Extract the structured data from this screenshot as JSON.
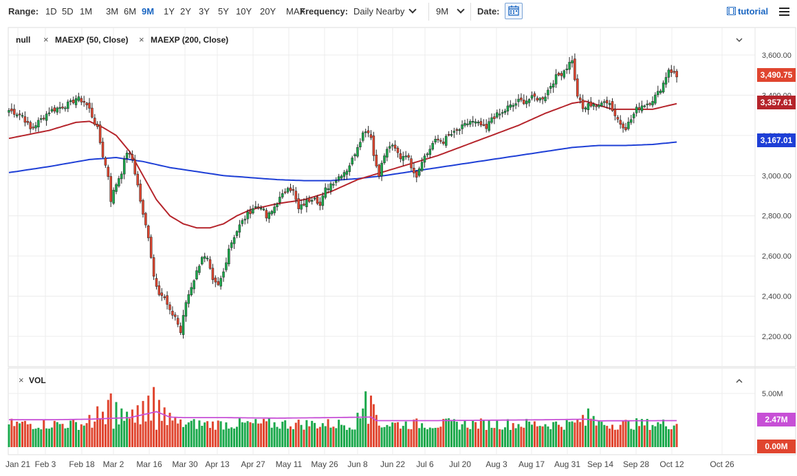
{
  "toolbar": {
    "range_label": "Range:",
    "ranges": [
      "1D",
      "5D",
      "1M",
      "3M",
      "6M",
      "9M",
      "1Y",
      "2Y",
      "3Y",
      "5Y",
      "10Y",
      "20Y",
      "MAX"
    ],
    "active_range": "9M",
    "frequency_label": "Frequency:",
    "frequency_value": "Daily Nearby",
    "period_value": "9M",
    "date_label": "Date:",
    "tutorial_label": "tutorial"
  },
  "legend": {
    "symbol": "null",
    "ma50": "MAEXP (50, Close)",
    "ma200": "MAEXP (200, Close)"
  },
  "volume_legend": "VOL",
  "price_badges": {
    "last": "3,490.75",
    "ma50": "3,357.61",
    "ma200": "3,167.01"
  },
  "volume_badges": {
    "avg": "2.47M",
    "zero": "0.00M"
  },
  "colors": {
    "up": "#1aa84b",
    "down": "#e0452f",
    "ma50": "#b5242b",
    "ma200": "#1e3fd6",
    "vol_avg": "#c74fd6",
    "accent": "#1a66c2"
  },
  "chart_data": [
    {
      "type": "candlestick",
      "title": "",
      "x_tick_labels": [
        "Jan 21",
        "Feb 3",
        "Feb 18",
        "Mar 2",
        "Mar 16",
        "Mar 30",
        "Apr 13",
        "Apr 27",
        "May 11",
        "May 26",
        "Jun 8",
        "Jun 22",
        "Jul 6",
        "Jul 20",
        "Aug 3",
        "Aug 17",
        "Aug 31",
        "Sep 14",
        "Sep 28",
        "Oct 12",
        "Oct 26"
      ],
      "y_tick_labels": [
        "3,600.00",
        "3,400.00",
        "3,200.00",
        "3,000.00",
        "2,800.00",
        "2,600.00",
        "2,400.00",
        "2,200.00"
      ],
      "ylim": [
        2150,
        3640
      ],
      "grid": true,
      "anchors_close": [
        [
          0,
          3325
        ],
        [
          5,
          3300
        ],
        [
          8,
          3230
        ],
        [
          12,
          3280
        ],
        [
          15,
          3320
        ],
        [
          20,
          3345
        ],
        [
          23,
          3360
        ],
        [
          25,
          3385
        ],
        [
          28,
          3370
        ],
        [
          30,
          3330
        ],
        [
          33,
          3230
        ],
        [
          35,
          3100
        ],
        [
          37,
          3000
        ],
        [
          38,
          2880
        ],
        [
          40,
          2960
        ],
        [
          42,
          3020
        ],
        [
          44,
          3120
        ],
        [
          46,
          3080
        ],
        [
          48,
          2950
        ],
        [
          50,
          2800
        ],
        [
          52,
          2700
        ],
        [
          54,
          2500
        ],
        [
          56,
          2420
        ],
        [
          58,
          2390
        ],
        [
          60,
          2320
        ],
        [
          62,
          2300
        ],
        [
          64,
          2220
        ],
        [
          66,
          2370
        ],
        [
          68,
          2450
        ],
        [
          70,
          2520
        ],
        [
          72,
          2600
        ],
        [
          74,
          2580
        ],
        [
          76,
          2470
        ],
        [
          78,
          2450
        ],
        [
          80,
          2520
        ],
        [
          82,
          2640
        ],
        [
          84,
          2700
        ],
        [
          86,
          2750
        ],
        [
          88,
          2790
        ],
        [
          91,
          2840
        ],
        [
          94,
          2850
        ],
        [
          96,
          2790
        ],
        [
          98,
          2820
        ],
        [
          100,
          2870
        ],
        [
          102,
          2900
        ],
        [
          104,
          2950
        ],
        [
          106,
          2920
        ],
        [
          108,
          2830
        ],
        [
          110,
          2860
        ],
        [
          112,
          2880
        ],
        [
          114,
          2900
        ],
        [
          116,
          2850
        ],
        [
          118,
          2930
        ],
        [
          120,
          2960
        ],
        [
          122,
          2980
        ],
        [
          124,
          3010
        ],
        [
          126,
          3030
        ],
        [
          128,
          3080
        ],
        [
          130,
          3150
        ],
        [
          132,
          3210
        ],
        [
          133,
          3230
        ],
        [
          135,
          3200
        ],
        [
          136,
          3100
        ],
        [
          137,
          3050
        ],
        [
          138,
          3010
        ],
        [
          140,
          3100
        ],
        [
          142,
          3150
        ],
        [
          144,
          3130
        ],
        [
          146,
          3090
        ],
        [
          148,
          3110
        ],
        [
          150,
          3050
        ],
        [
          152,
          3000
        ],
        [
          154,
          3080
        ],
        [
          156,
          3110
        ],
        [
          158,
          3160
        ],
        [
          160,
          3180
        ],
        [
          162,
          3170
        ],
        [
          164,
          3200
        ],
        [
          166,
          3210
        ],
        [
          168,
          3230
        ],
        [
          170,
          3250
        ],
        [
          172,
          3270
        ],
        [
          174,
          3260
        ],
        [
          176,
          3250
        ],
        [
          178,
          3230
        ],
        [
          180,
          3290
        ],
        [
          182,
          3300
        ],
        [
          184,
          3310
        ],
        [
          186,
          3340
        ],
        [
          188,
          3350
        ],
        [
          190,
          3370
        ],
        [
          192,
          3370
        ],
        [
          194,
          3380
        ],
        [
          196,
          3390
        ],
        [
          198,
          3380
        ],
        [
          200,
          3400
        ],
        [
          202,
          3450
        ],
        [
          204,
          3490
        ],
        [
          206,
          3510
        ],
        [
          208,
          3540
        ],
        [
          210,
          3580
        ],
        [
          211,
          3470
        ],
        [
          212,
          3400
        ],
        [
          214,
          3330
        ],
        [
          216,
          3350
        ],
        [
          218,
          3360
        ],
        [
          220,
          3340
        ],
        [
          222,
          3380
        ],
        [
          224,
          3360
        ],
        [
          226,
          3300
        ],
        [
          228,
          3260
        ],
        [
          230,
          3240
        ],
        [
          232,
          3280
        ],
        [
          234,
          3330
        ],
        [
          236,
          3350
        ],
        [
          238,
          3360
        ],
        [
          240,
          3380
        ],
        [
          242,
          3410
        ],
        [
          244,
          3460
        ],
        [
          246,
          3530
        ],
        [
          248,
          3510
        ],
        [
          249,
          3490
        ]
      ],
      "ma50_anchors": [
        [
          0,
          3185
        ],
        [
          15,
          3225
        ],
        [
          25,
          3265
        ],
        [
          30,
          3270
        ],
        [
          35,
          3240
        ],
        [
          40,
          3200
        ],
        [
          45,
          3120
        ],
        [
          50,
          3000
        ],
        [
          55,
          2880
        ],
        [
          60,
          2800
        ],
        [
          65,
          2760
        ],
        [
          70,
          2740
        ],
        [
          75,
          2740
        ],
        [
          80,
          2760
        ],
        [
          85,
          2800
        ],
        [
          90,
          2830
        ],
        [
          100,
          2860
        ],
        [
          110,
          2880
        ],
        [
          120,
          2920
        ],
        [
          130,
          2980
        ],
        [
          140,
          3020
        ],
        [
          150,
          3060
        ],
        [
          160,
          3100
        ],
        [
          170,
          3150
        ],
        [
          180,
          3200
        ],
        [
          190,
          3250
        ],
        [
          200,
          3310
        ],
        [
          210,
          3360
        ],
        [
          215,
          3370
        ],
        [
          220,
          3350
        ],
        [
          225,
          3330
        ],
        [
          230,
          3330
        ],
        [
          240,
          3330
        ],
        [
          249,
          3358
        ]
      ],
      "ma200_anchors": [
        [
          0,
          3015
        ],
        [
          15,
          3045
        ],
        [
          30,
          3080
        ],
        [
          40,
          3090
        ],
        [
          50,
          3070
        ],
        [
          60,
          3040
        ],
        [
          70,
          3020
        ],
        [
          80,
          3000
        ],
        [
          90,
          2990
        ],
        [
          100,
          2980
        ],
        [
          110,
          2975
        ],
        [
          120,
          2975
        ],
        [
          130,
          2985
        ],
        [
          140,
          3000
        ],
        [
          150,
          3020
        ],
        [
          160,
          3040
        ],
        [
          170,
          3060
        ],
        [
          180,
          3080
        ],
        [
          190,
          3100
        ],
        [
          200,
          3120
        ],
        [
          210,
          3140
        ],
        [
          220,
          3150
        ],
        [
          230,
          3150
        ],
        [
          240,
          3155
        ],
        [
          249,
          3167
        ]
      ],
      "last_close": 3490.75,
      "ma50_last": 3357.61,
      "ma200_last": 3167.01,
      "legend_position": "top-left"
    },
    {
      "type": "bar",
      "title": "",
      "y_tick_labels": [
        "5.00M"
      ],
      "ylim": [
        0,
        6
      ],
      "grid": true,
      "spikes": [
        [
          30,
          3.0
        ],
        [
          33,
          3.8
        ],
        [
          35,
          3.3
        ],
        [
          37,
          4.4
        ],
        [
          38,
          5.0
        ],
        [
          40,
          4.2
        ],
        [
          42,
          3.6
        ],
        [
          44,
          3.3
        ],
        [
          46,
          3.5
        ],
        [
          48,
          3.9
        ],
        [
          50,
          4.3
        ],
        [
          52,
          4.8
        ],
        [
          54,
          5.6
        ],
        [
          56,
          4.4
        ],
        [
          58,
          3.7
        ],
        [
          60,
          3.2
        ],
        [
          62,
          2.8
        ],
        [
          130,
          3.2
        ],
        [
          132,
          3.6
        ],
        [
          133,
          5.2
        ],
        [
          135,
          4.8
        ],
        [
          136,
          4.0
        ],
        [
          137,
          3.0
        ],
        [
          210,
          2.4
        ],
        [
          212,
          2.6
        ],
        [
          214,
          3.0
        ],
        [
          216,
          3.6
        ],
        [
          218,
          2.9
        ],
        [
          220,
          2.5
        ]
      ],
      "base_volume": 2.0,
      "avg_volume_line": 2.47,
      "avg_anchors": [
        [
          0,
          2.55
        ],
        [
          15,
          2.55
        ],
        [
          30,
          2.6
        ],
        [
          45,
          2.75
        ],
        [
          55,
          3.3
        ],
        [
          60,
          2.8
        ],
        [
          65,
          2.75
        ],
        [
          80,
          2.75
        ],
        [
          100,
          2.7
        ],
        [
          120,
          2.75
        ],
        [
          135,
          2.8
        ],
        [
          137,
          2.47
        ],
        [
          160,
          2.47
        ],
        [
          200,
          2.55
        ],
        [
          215,
          2.6
        ],
        [
          220,
          2.45
        ],
        [
          249,
          2.47
        ]
      ]
    }
  ]
}
